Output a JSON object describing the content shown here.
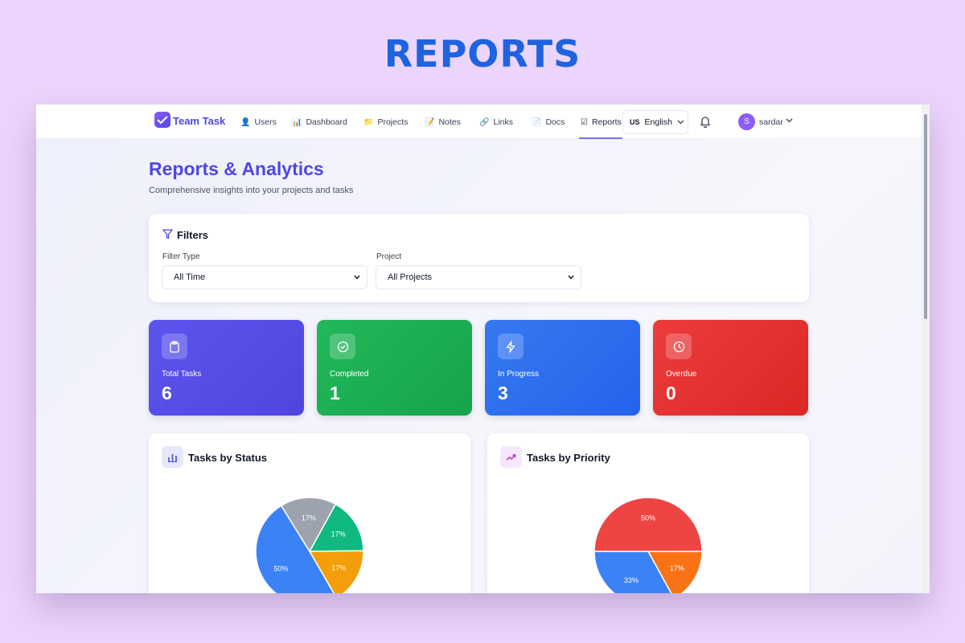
{
  "banner": "REPORTS",
  "app": {
    "brand": "Team Task"
  },
  "nav": [
    {
      "label": "Users",
      "icon": "bust-icon"
    },
    {
      "label": "Dashboard",
      "icon": "bar-chart-icon"
    },
    {
      "label": "Projects",
      "icon": "folder-icon"
    },
    {
      "label": "Notes",
      "icon": "memo-icon"
    },
    {
      "label": "Links",
      "icon": "link-icon"
    },
    {
      "label": "Docs",
      "icon": "document-icon"
    },
    {
      "label": "Reports",
      "icon": "checkbox-icon",
      "active": true
    }
  ],
  "language": {
    "flag": "US",
    "label": "English"
  },
  "user": {
    "initial": "S",
    "name": "sardar"
  },
  "page": {
    "title": "Reports & Analytics",
    "subtitle": "Comprehensive insights into your projects and tasks"
  },
  "filters": {
    "title": "Filters",
    "filter_type_label": "Filter Type",
    "filter_type_value": "All Time",
    "project_label": "Project",
    "project_value": "All Projects"
  },
  "stats": [
    {
      "label": "Total Tasks",
      "value": "6",
      "color": "#5a4ee6"
    },
    {
      "label": "Completed",
      "value": "1",
      "color": "#1fb052"
    },
    {
      "label": "In Progress",
      "value": "3",
      "color": "#2f6ee8"
    },
    {
      "label": "Overdue",
      "value": "0",
      "color": "#e23434"
    }
  ],
  "chart_data": [
    {
      "type": "pie",
      "title": "Tasks by Status",
      "slices": [
        {
          "label": "17%",
          "value": 17,
          "color": "#10b981"
        },
        {
          "label": "17%",
          "value": 17,
          "color": "#f59e0b"
        },
        {
          "label": "50%",
          "value": 50,
          "color": "#3b82f6"
        },
        {
          "label": "17%",
          "value": 17,
          "color": "#9ca3af"
        }
      ]
    },
    {
      "type": "pie",
      "title": "Tasks by Priority",
      "slices": [
        {
          "label": "17%",
          "value": 17,
          "color": "#f97316"
        },
        {
          "label": "33%",
          "value": 33,
          "color": "#3b82f6"
        },
        {
          "label": "50%",
          "value": 50,
          "color": "#ef4444"
        }
      ]
    }
  ]
}
